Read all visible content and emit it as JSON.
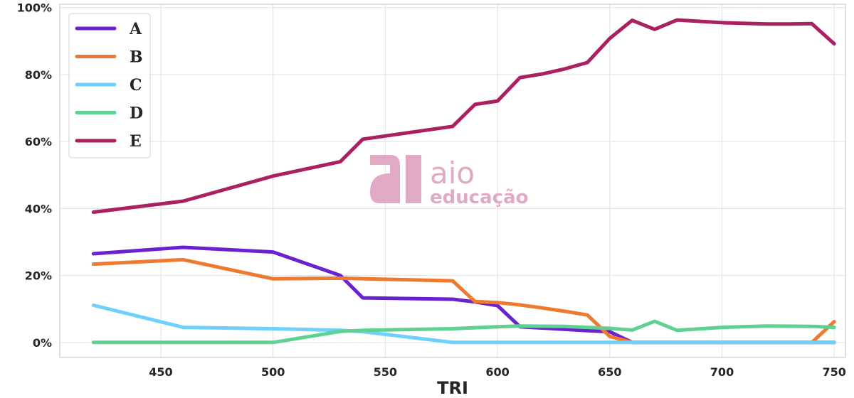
{
  "chart_data": {
    "type": "line",
    "xlabel": "TRI",
    "ylabel": "",
    "xlim": [
      405,
      755
    ],
    "ylim": [
      -4.5,
      101
    ],
    "x_ticks": [
      450,
      500,
      550,
      600,
      650,
      700,
      750
    ],
    "y_ticks": [
      0,
      20,
      40,
      60,
      80,
      100
    ],
    "y_tick_format": "percent",
    "grid": true,
    "legend_position": "top-left",
    "series": [
      {
        "name": "A",
        "color": "#6a22d0",
        "x": [
          420,
          460,
          500,
          530,
          540,
          580,
          590,
          600,
          610,
          640,
          650,
          660,
          670,
          680,
          700,
          720,
          740,
          750
        ],
        "y": [
          26.5,
          28.4,
          27.0,
          20.0,
          13.3,
          12.9,
          12.1,
          11.0,
          4.7,
          3.5,
          3.2,
          0,
          0,
          0,
          0,
          0,
          0,
          0
        ]
      },
      {
        "name": "B",
        "color": "#ee7a30",
        "x": [
          420,
          460,
          500,
          530,
          580,
          590,
          600,
          610,
          620,
          630,
          640,
          650,
          660,
          670,
          680,
          700,
          720,
          740,
          750
        ],
        "y": [
          23.4,
          24.7,
          19.0,
          19.2,
          18.4,
          12.2,
          11.9,
          11.2,
          10.3,
          9.3,
          8.2,
          1.8,
          0,
          0,
          0,
          0,
          0,
          0,
          6.2
        ]
      },
      {
        "name": "C",
        "color": "#6fd0fb",
        "x": [
          420,
          460,
          500,
          530,
          540,
          580,
          600,
          650,
          700,
          750
        ],
        "y": [
          11.1,
          4.5,
          4.1,
          3.6,
          3.2,
          0,
          0,
          0,
          0,
          0
        ]
      },
      {
        "name": "D",
        "color": "#5ed193",
        "x": [
          420,
          460,
          500,
          530,
          540,
          580,
          600,
          610,
          630,
          640,
          650,
          660,
          670,
          680,
          700,
          720,
          740,
          750
        ],
        "y": [
          0,
          0,
          0,
          3.3,
          3.6,
          4.1,
          4.7,
          4.9,
          4.8,
          4.5,
          4.2,
          3.7,
          6.3,
          3.6,
          4.5,
          4.9,
          4.8,
          4.5
        ]
      },
      {
        "name": "E",
        "color": "#ab2060",
        "x": [
          420,
          460,
          500,
          530,
          540,
          580,
          590,
          600,
          610,
          620,
          630,
          640,
          650,
          660,
          670,
          680,
          700,
          720,
          730,
          740,
          750
        ],
        "y": [
          38.9,
          42.2,
          49.7,
          54.0,
          60.7,
          64.5,
          71.1,
          72.1,
          79.1,
          80.2,
          81.7,
          83.6,
          90.8,
          96.2,
          93.5,
          96.3,
          95.5,
          95.1,
          95.1,
          95.2,
          89.2
        ]
      }
    ]
  },
  "watermark": {
    "line1": "aio",
    "line2": "educação",
    "color": "#e0a9c4"
  }
}
